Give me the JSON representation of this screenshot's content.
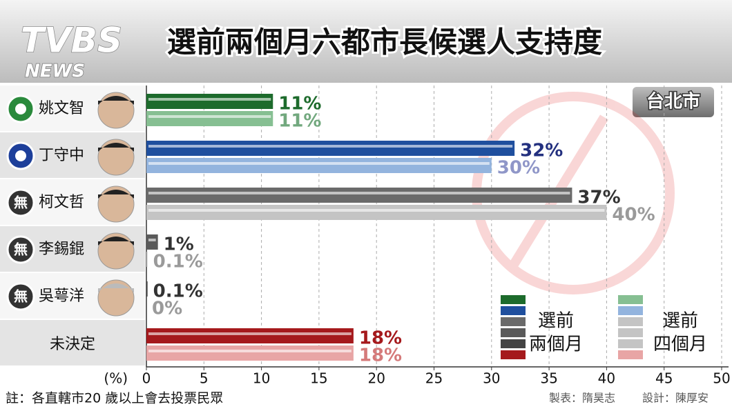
{
  "header": {
    "logo": "TVBS",
    "logo_sub": "NEWS"
  },
  "chart_data": {
    "type": "bar",
    "orientation": "horizontal",
    "title": "選前兩個月六都市長候選人支持度",
    "region": "台北市",
    "categories": [
      "姚文智",
      "丁守中",
      "柯文哲",
      "李錫錕",
      "吳萼洋",
      "未決定"
    ],
    "party_labels": [
      null,
      null,
      "無",
      "無",
      "無",
      null
    ],
    "series": [
      {
        "name": [
          "選前",
          "兩個月"
        ],
        "colors": [
          "#1d6b2c",
          "#1f4f9e",
          "#6a6a6a",
          "#5a5a5a",
          "#444444",
          "#a5191c"
        ],
        "label_colors": [
          "#1d6b2c",
          "#23307f",
          "#333333",
          "#333333",
          "#333333",
          "#a5191c"
        ],
        "values": [
          11,
          32,
          37,
          1,
          0.1,
          18
        ],
        "value_labels": [
          "11%",
          "32%",
          "37%",
          "1%",
          "0.1%",
          "18%"
        ]
      },
      {
        "name": [
          "選前",
          "四個月"
        ],
        "colors": [
          "#86bf92",
          "#93b4de",
          "#c4c4c4",
          "#c4c4c4",
          "#c4c4c4",
          "#e8a5a5"
        ],
        "label_colors": [
          "#72a87e",
          "#8f96c8",
          "#9a9a9a",
          "#9a9a9a",
          "#9a9a9a",
          "#d57a7a"
        ],
        "values": [
          11,
          30,
          40,
          0.1,
          0,
          18
        ],
        "value_labels": [
          "11%",
          "30%",
          "40%",
          "0.1%",
          "0%",
          "18%"
        ]
      }
    ],
    "xlim": [
      0,
      50
    ],
    "xticks": [
      0,
      5,
      10,
      15,
      20,
      25,
      30,
      35,
      40,
      45,
      50
    ],
    "x_label": "(%)",
    "grid": true,
    "note": "註：各直轄市20 歲以上會去投票民眾",
    "credits": [
      "製表：隋昊志",
      "設計：陳厚安"
    ]
  }
}
